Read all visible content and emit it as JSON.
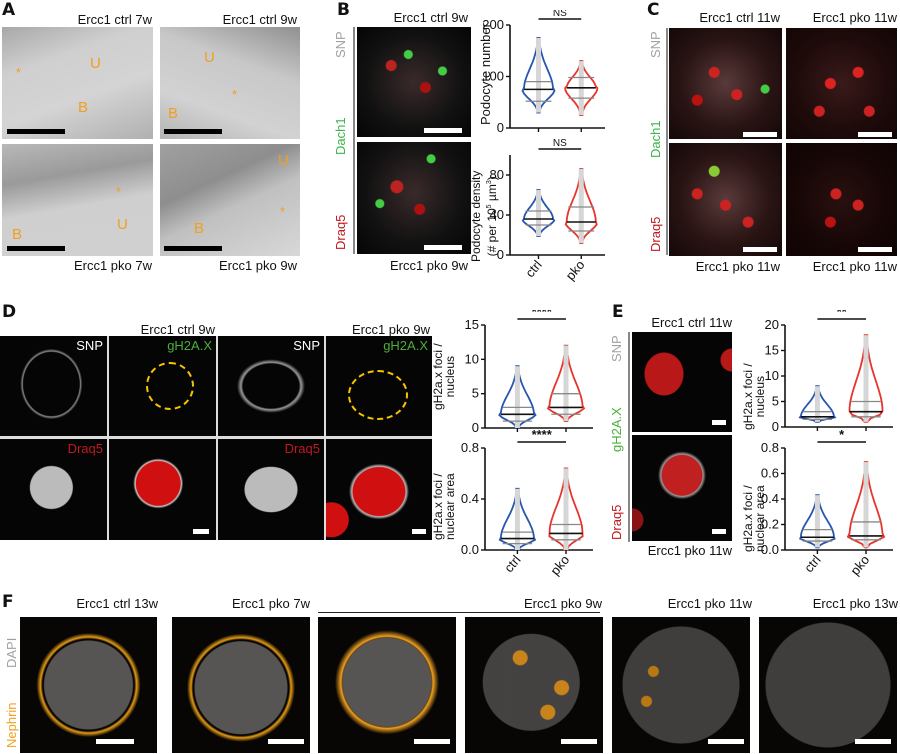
{
  "colors": {
    "ctrl": "#2755b0",
    "pko": "#e8342c",
    "em_label": "#f0a020",
    "snp": "#a0a0a0",
    "dach1": "#39b54a",
    "draq5": "#c0191f",
    "gh2ax": "#4caf3a",
    "nephrin": "#f0a020",
    "dapi": "#a0a0a0",
    "dashed_circle": "#f5c400"
  },
  "panelA": {
    "label": "A",
    "captions": [
      "Ercc1 ctrl 7w",
      "Ercc1 ctrl 9w",
      "Ercc1 pko 7w",
      "Ercc1 pko 9w"
    ],
    "marks": {
      "u": "U",
      "b": "B",
      "star": "*"
    }
  },
  "panelB": {
    "label": "B",
    "captions": [
      "Ercc1 ctrl 9w",
      "Ercc1 pko 9w"
    ],
    "channels": [
      "SNP",
      "Dach1",
      "Draq5"
    ]
  },
  "panelC": {
    "label": "C",
    "captions_top": [
      "Ercc1 ctrl 11w",
      "Ercc1 pko 11w"
    ],
    "captions_bottom": [
      "Ercc1 pko 11w",
      "Ercc1 pko 11w"
    ],
    "channels": [
      "SNP",
      "Dach1",
      "Draq5"
    ]
  },
  "panelD": {
    "label": "D",
    "captions": [
      "Ercc1 ctrl 9w",
      "Ercc1 pko 9w"
    ],
    "tile_labels": [
      "SNP",
      "gH2A.X",
      "SNP",
      "gH2A.X",
      "Draq5",
      "",
      "Draq5",
      ""
    ]
  },
  "panelE": {
    "label": "E",
    "captions": [
      "Ercc1 ctrl 11w",
      "Ercc1 pko 11w"
    ],
    "channels": [
      "SNP",
      "gH2A.X",
      "Draq5"
    ]
  },
  "panelF": {
    "label": "F",
    "captions": [
      "Ercc1 ctrl 13w",
      "Ercc1 pko 7w",
      "Ercc1 pko 9w",
      "Ercc1 pko 11w",
      "Ercc1 pko 13w"
    ],
    "channels": [
      "DAPI",
      "Nephrin"
    ]
  },
  "chart_data": [
    {
      "id": "B-top",
      "type": "violin",
      "title": "",
      "ylabel": "Podocyte number",
      "xlabel": "",
      "categories": [
        "ctrl",
        "pko"
      ],
      "ylim": [
        0,
        200
      ],
      "yticks": [
        0,
        100,
        200
      ],
      "significance": "NS",
      "series": [
        {
          "name": "ctrl",
          "min": 30,
          "max": 175,
          "median": 75,
          "q1": 52,
          "q3": 90
        },
        {
          "name": "pko",
          "min": 25,
          "max": 130,
          "median": 78,
          "q1": 58,
          "q3": 98
        }
      ]
    },
    {
      "id": "B-bottom",
      "type": "violin",
      "ylabel": "Podocyte density (# per 10^5 µm^3)",
      "categories": [
        "ctrl",
        "pko"
      ],
      "ylim": [
        0,
        100
      ],
      "yticks": [
        0,
        40,
        80
      ],
      "significance": "NS",
      "series": [
        {
          "name": "ctrl",
          "min": 19,
          "max": 65,
          "median": 36,
          "q1": 30,
          "q3": 44
        },
        {
          "name": "pko",
          "min": 12,
          "max": 86,
          "median": 33,
          "q1": 24,
          "q3": 48
        }
      ]
    },
    {
      "id": "D-top",
      "type": "violin",
      "ylabel": "gH2a.x foci / nucleus",
      "categories": [
        "ctrl",
        "pko"
      ],
      "ylim": [
        0,
        15
      ],
      "yticks": [
        0,
        5,
        10,
        15
      ],
      "significance": "****",
      "series": [
        {
          "name": "ctrl",
          "min": 0,
          "max": 9,
          "median": 2,
          "q1": 1,
          "q3": 3
        },
        {
          "name": "pko",
          "min": 1,
          "max": 12,
          "median": 3,
          "q1": 2,
          "q3": 5
        }
      ]
    },
    {
      "id": "D-bottom",
      "type": "violin",
      "ylabel": "gH2a.x foci / nuclear area",
      "categories": [
        "ctrl",
        "pko"
      ],
      "ylim": [
        0,
        0.8
      ],
      "yticks": [
        0.0,
        0.4,
        0.8
      ],
      "significance": "****",
      "series": [
        {
          "name": "ctrl",
          "min": 0.0,
          "max": 0.48,
          "median": 0.09,
          "q1": 0.05,
          "q3": 0.14
        },
        {
          "name": "pko",
          "min": 0.0,
          "max": 0.64,
          "median": 0.13,
          "q1": 0.08,
          "q3": 0.2
        }
      ]
    },
    {
      "id": "E-top",
      "type": "violin",
      "ylabel": "gH2a.x foci / nucleus",
      "categories": [
        "ctrl",
        "pko"
      ],
      "ylim": [
        0,
        20
      ],
      "yticks": [
        0,
        5,
        10,
        15,
        20
      ],
      "significance": "**",
      "series": [
        {
          "name": "ctrl",
          "min": 1,
          "max": 8,
          "median": 2,
          "q1": 1.5,
          "q3": 3
        },
        {
          "name": "pko",
          "min": 1,
          "max": 18,
          "median": 3,
          "q1": 2,
          "q3": 5
        }
      ]
    },
    {
      "id": "E-bottom",
      "type": "violin",
      "ylabel": "gH2a.x foci / nuclear area",
      "categories": [
        "ctrl",
        "pko"
      ],
      "ylim": [
        0,
        0.8
      ],
      "yticks": [
        0.0,
        0.2,
        0.4,
        0.6,
        0.8
      ],
      "significance": "*",
      "series": [
        {
          "name": "ctrl",
          "min": 0.02,
          "max": 0.43,
          "median": 0.1,
          "q1": 0.07,
          "q3": 0.16
        },
        {
          "name": "pko",
          "min": 0.02,
          "max": 0.69,
          "median": 0.11,
          "q1": 0.08,
          "q3": 0.22
        }
      ]
    }
  ]
}
